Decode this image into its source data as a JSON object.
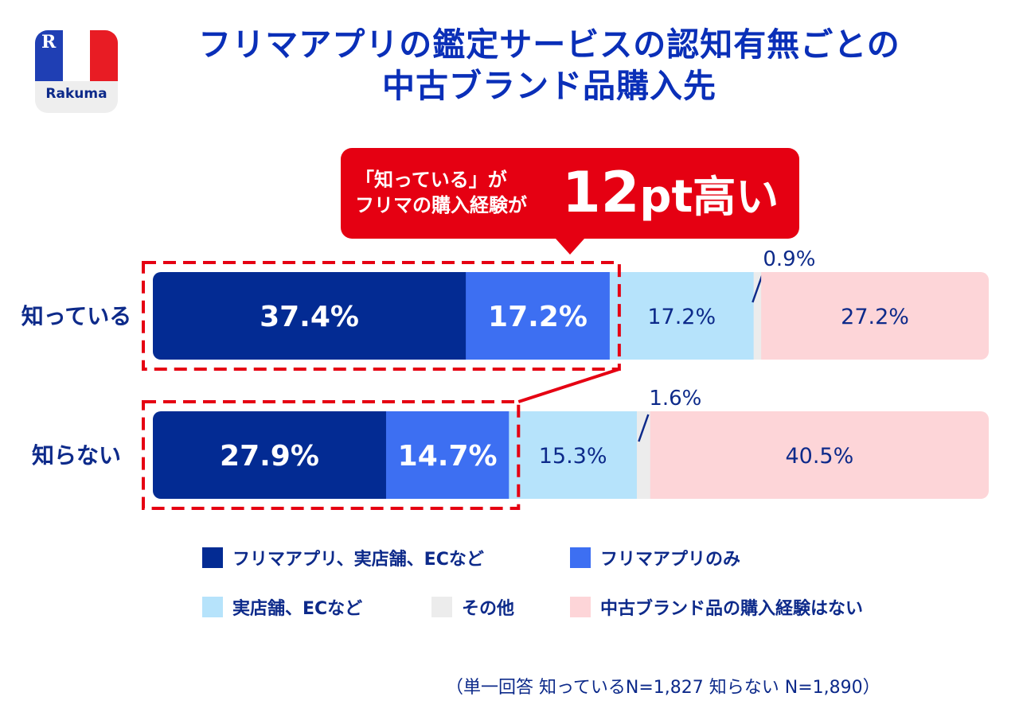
{
  "logo": {
    "brand": "Rakuma",
    "mark": "R"
  },
  "title": {
    "line1": "フリマアプリの鑑定サービスの認知有無ごとの",
    "line2": "中古ブランド品購入先"
  },
  "callout": {
    "line1": "「知っている」が",
    "line2": "フリマの購入経験が",
    "value": "12",
    "unit": "pt",
    "suffix": "高い"
  },
  "colors": {
    "navy": "#032b93",
    "blue": "#3d6ff2",
    "lightblue": "#b6e3fb",
    "gray": "#ececec",
    "pink": "#fdd5d8",
    "red": "#e50012",
    "text": "#0d2a8a"
  },
  "chart_data": {
    "type": "bar",
    "orientation": "horizontal-stacked-100",
    "title": "フリマアプリの鑑定サービスの認知有無ごとの中古ブランド品購入先",
    "categories": [
      "知っている",
      "知らない"
    ],
    "series": [
      {
        "name": "フリマアプリ、実店舗、ECなど",
        "values": [
          37.4,
          27.9
        ],
        "color": "#032b93",
        "label_color": "#ffffff",
        "label_bold": true
      },
      {
        "name": "フリマアプリのみ",
        "values": [
          17.2,
          14.7
        ],
        "color": "#3d6ff2",
        "label_color": "#ffffff",
        "label_bold": true
      },
      {
        "name": "実店舗、ECなど",
        "values": [
          17.2,
          15.3
        ],
        "color": "#b6e3fb",
        "label_color": "#0d2a8a",
        "label_bold": false
      },
      {
        "name": "その他",
        "values": [
          0.9,
          1.6
        ],
        "color": "#ececec",
        "label_color": "#0d2a8a",
        "label_bold": false,
        "label_outside": true
      },
      {
        "name": "中古ブランド品の購入経験はない",
        "values": [
          27.2,
          40.5
        ],
        "color": "#fdd5d8",
        "label_color": "#0d2a8a",
        "label_bold": false
      }
    ],
    "value_labels": [
      [
        "37.4%",
        "17.2%",
        "17.2%",
        "0.9%",
        "27.2%"
      ],
      [
        "27.9%",
        "14.7%",
        "15.3%",
        "1.6%",
        "40.5%"
      ]
    ],
    "xlim": [
      0,
      100
    ],
    "legend_position": "bottom"
  },
  "footnote": "（単一回答  知っているN=1,827 知らない N=1,890）"
}
